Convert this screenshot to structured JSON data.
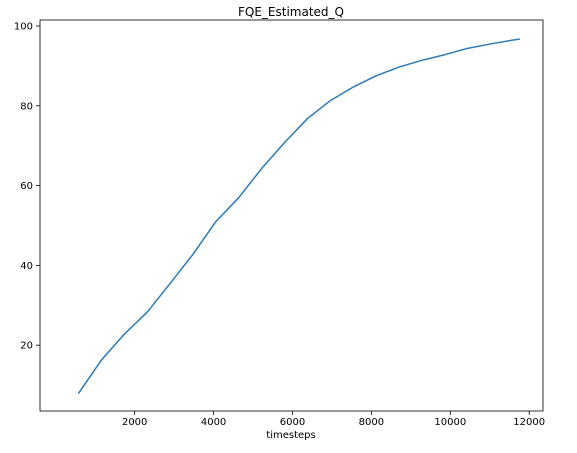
{
  "chart_data": {
    "type": "line",
    "title": "FQE_Estimated_Q",
    "xlabel": "timesteps",
    "ylabel": "",
    "xlim": [
      -400,
      12350
    ],
    "ylim": [
      3.5,
      101.5
    ],
    "xticks": [
      2000,
      4000,
      6000,
      8000,
      10000,
      12000
    ],
    "yticks": [
      20,
      40,
      60,
      80,
      100
    ],
    "xtick_labels": [
      "2000",
      "4000",
      "6000",
      "8000",
      "10000",
      "12000"
    ],
    "ytick_labels": [
      "20",
      "40",
      "60",
      "80",
      "100"
    ],
    "grid": false,
    "series": [
      {
        "color": "#2a7ab7",
        "x": [
          580,
          1160,
          1740,
          2320,
          2900,
          3480,
          4060,
          4640,
          5220,
          5800,
          6380,
          6960,
          7540,
          8120,
          8700,
          9280,
          9860,
          10440,
          11020,
          11600,
          11750
        ],
        "y": [
          8,
          16.3,
          22.8,
          28.3,
          35.5,
          42.8,
          51,
          57,
          64.3,
          70.8,
          76.8,
          81.3,
          84.7,
          87.5,
          89.7,
          91.4,
          92.8,
          94.4,
          95.5,
          96.5,
          96.7
        ]
      }
    ]
  }
}
